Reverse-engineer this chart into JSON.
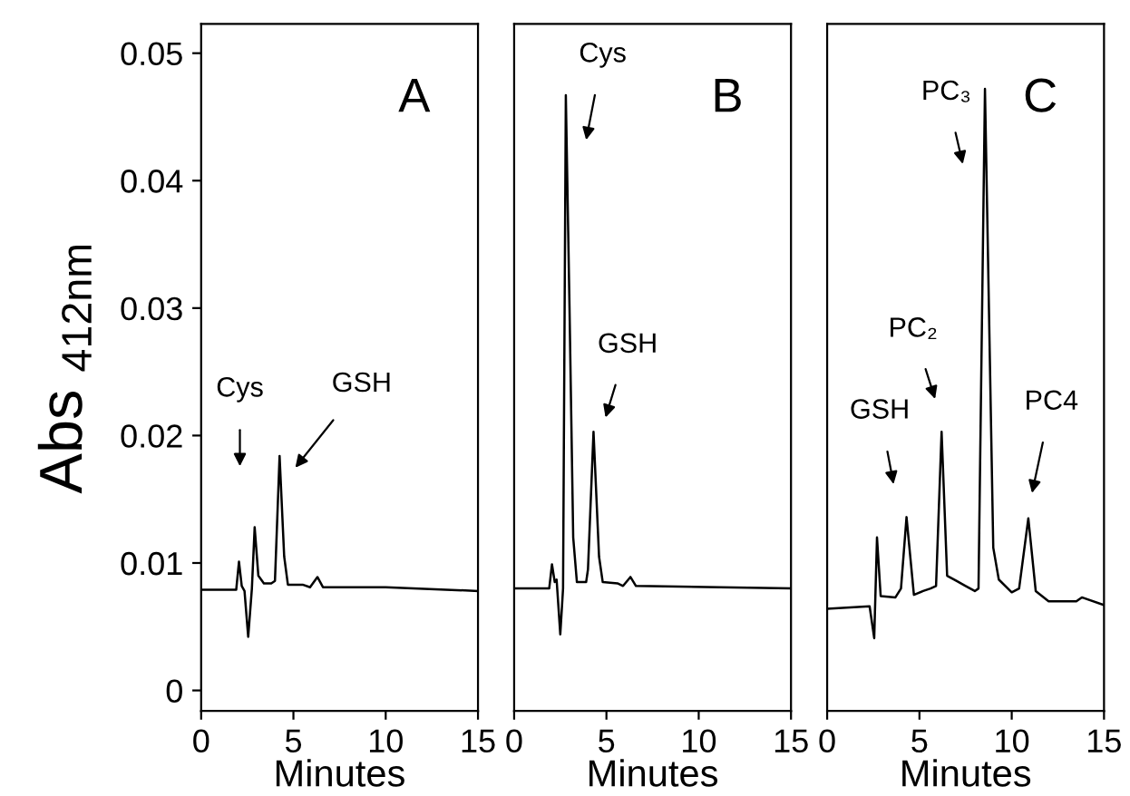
{
  "chart_data": [
    {
      "type": "line",
      "xlabel": "Minutes",
      "ylabel": "Abs $_{412nm}$",
      "xlim": [
        0,
        15
      ],
      "xticks": [
        0,
        5,
        10,
        15
      ],
      "ylim": [
        -0.0016,
        0.0523
      ],
      "yticks": [
        0,
        0.01,
        0.02,
        0.03,
        0.04,
        0.05
      ],
      "grid": false,
      "legend": false,
      "series": [
        {
          "color": "#000000",
          "x": [
            0,
            1.9,
            2.05,
            2.2,
            2.35,
            2.55,
            2.75,
            2.9,
            3.1,
            3.4,
            3.8,
            4.0,
            4.25,
            4.5,
            4.7,
            5.5,
            5.9,
            6.3,
            6.6,
            10,
            15
          ],
          "values": [
            0.0079,
            0.0079,
            0.0101,
            0.0082,
            0.0078,
            0.0042,
            0.008,
            0.0128,
            0.009,
            0.0084,
            0.0084,
            0.0086,
            0.0184,
            0.0105,
            0.0083,
            0.0083,
            0.0081,
            0.0089,
            0.0081,
            0.0081,
            0.0078
          ]
        }
      ],
      "annotations": [
        "A",
        "Cys",
        "GSH"
      ]
    },
    {
      "type": "line",
      "xlabel": "Minutes",
      "xlim": [
        0,
        15
      ],
      "xticks": [
        0,
        5,
        10,
        15
      ],
      "ylim": [
        -0.0016,
        0.0523
      ],
      "tick_labels": "x",
      "grid": false,
      "legend": false,
      "series": [
        {
          "color": "#000000",
          "x": [
            0,
            1.9,
            2.05,
            2.2,
            2.3,
            2.5,
            2.65,
            2.8,
            3.0,
            3.2,
            3.4,
            3.9,
            4.0,
            4.3,
            4.6,
            4.8,
            5.6,
            5.9,
            6.3,
            6.6,
            15
          ],
          "values": [
            0.008,
            0.008,
            0.0099,
            0.0085,
            0.0087,
            0.0044,
            0.008,
            0.0467,
            0.03,
            0.012,
            0.0085,
            0.0085,
            0.0095,
            0.0203,
            0.0105,
            0.0085,
            0.0084,
            0.0082,
            0.0089,
            0.0082,
            0.008
          ]
        }
      ],
      "annotations": [
        "B",
        "Cys",
        "GSH"
      ]
    },
    {
      "type": "line",
      "xlabel": "Minutes",
      "xlim": [
        0,
        15
      ],
      "xticks": [
        0,
        5,
        10,
        15
      ],
      "ylim": [
        -0.0016,
        0.0523
      ],
      "tick_labels": "x",
      "grid": false,
      "legend": false,
      "series": [
        {
          "color": "#000000",
          "x": [
            0,
            2.3,
            2.55,
            2.7,
            2.9,
            3.7,
            4.0,
            4.3,
            4.7,
            5.2,
            5.6,
            5.9,
            6.2,
            6.5,
            7.0,
            7.5,
            8.0,
            8.2,
            8.55,
            9.0,
            9.3,
            10.0,
            10.4,
            10.9,
            11.3,
            12,
            13.5,
            13.8,
            15
          ],
          "values": [
            0.0064,
            0.0066,
            0.0041,
            0.012,
            0.0074,
            0.0073,
            0.008,
            0.0136,
            0.0075,
            0.0078,
            0.008,
            0.0082,
            0.0203,
            0.009,
            0.0086,
            0.0082,
            0.0078,
            0.008,
            0.0472,
            0.0112,
            0.0087,
            0.0077,
            0.008,
            0.0135,
            0.0078,
            0.007,
            0.007,
            0.0073,
            0.0067
          ]
        }
      ],
      "annotations": [
        "C",
        "PC₃",
        "PC₂",
        "GSH",
        "PC4"
      ]
    }
  ]
}
